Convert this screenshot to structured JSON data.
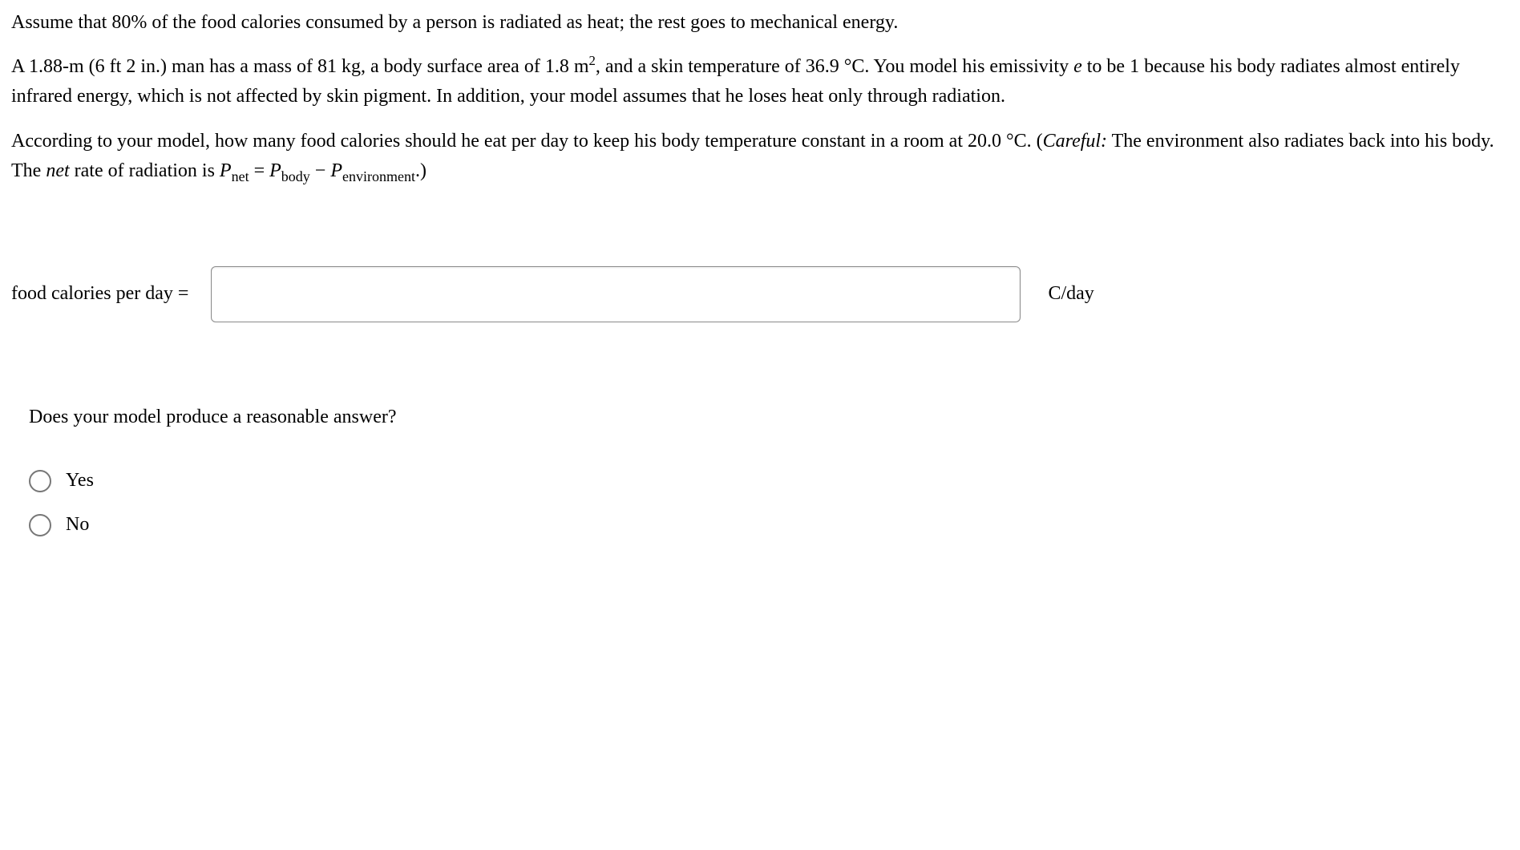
{
  "problem": {
    "para1": "Assume that 80% of the food calories consumed by a person is radiated as heat; the rest goes to mechanical energy.",
    "para2_a": "A 1.88-m  (6 ft 2 in.) man has a mass of 81 kg, a body surface area of 1.8 m",
    "para2_sup": "2",
    "para2_b": ", and a skin temperature of 36.9 °C. You model his emissivity ",
    "para2_e": "e",
    "para2_c": " to be 1 because his body radiates almost entirely infrared energy, which is not affected by skin pigment. In addition, your model assumes that he loses heat only through radiation.",
    "para3_a": "According to your model, how many food calories should he eat per day to keep his body temperature constant in a room at 20.0 °C. (",
    "para3_careful": "Careful:",
    "para3_b": " The environment also radiates back into his body. The ",
    "para3_net": "net",
    "para3_c": " rate of radiation is ",
    "pnet_P": "P",
    "pnet_sub": "net",
    "eq": " = ",
    "pbody_P": "P",
    "pbody_sub": "body",
    "minus": " − ",
    "penv_P": "P",
    "penv_sub": "environment",
    "para3_d": ".)"
  },
  "answer": {
    "label": "food calories per day  =",
    "value": "",
    "unit": "C/day"
  },
  "question2": "Does your model produce a reasonable answer?",
  "options": {
    "yes": "Yes",
    "no": "No"
  }
}
